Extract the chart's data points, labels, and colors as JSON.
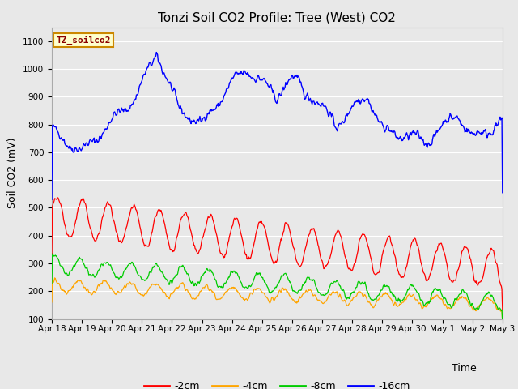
{
  "title": "Tonzi Soil CO2 Profile: Tree (West) CO2",
  "ylabel": "Soil CO2 (mV)",
  "xlabel": "Time",
  "legend_label": "TZ_soilco2",
  "series_labels": [
    "-2cm",
    "-4cm",
    "-8cm",
    "-16cm"
  ],
  "series_colors": [
    "#ff0000",
    "#ffa500",
    "#00cc00",
    "#0000ff"
  ],
  "ylim": [
    100,
    1150
  ],
  "yticks": [
    100,
    200,
    300,
    400,
    500,
    600,
    700,
    800,
    900,
    1000,
    1100
  ],
  "background_color": "#e8e8e8",
  "plot_bg_color": "#e8e8e8",
  "title_fontsize": 11,
  "axis_label_fontsize": 9,
  "tick_fontsize": 7.5,
  "legend_box_color": "#ffffcc",
  "legend_box_edge": "#cc8800",
  "legend_label_color": "#8B0000"
}
